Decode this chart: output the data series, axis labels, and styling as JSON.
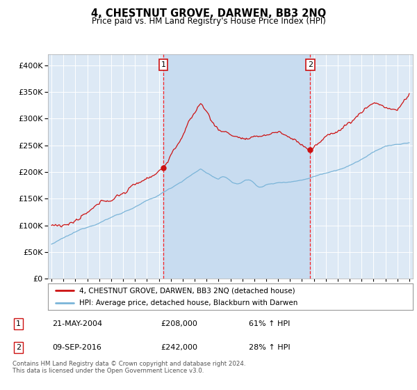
{
  "title": "4, CHESTNUT GROVE, DARWEN, BB3 2NQ",
  "subtitle": "Price paid vs. HM Land Registry's House Price Index (HPI)",
  "bg_color": "#dde9f5",
  "shade_color": "#c8dcf0",
  "red_label": "4, CHESTNUT GROVE, DARWEN, BB3 2NQ (detached house)",
  "blue_label": "HPI: Average price, detached house, Blackburn with Darwen",
  "annotation1_date": "21-MAY-2004",
  "annotation1_price": "£208,000",
  "annotation1_hpi": "61% ↑ HPI",
  "annotation1_year": 2004.38,
  "annotation1_value": 208000,
  "annotation2_date": "09-SEP-2016",
  "annotation2_price": "£242,000",
  "annotation2_hpi": "28% ↑ HPI",
  "annotation2_year": 2016.69,
  "annotation2_value": 242000,
  "footer": "Contains HM Land Registry data © Crown copyright and database right 2024.\nThis data is licensed under the Open Government Licence v3.0.",
  "ylim": [
    0,
    420000
  ],
  "yticks": [
    0,
    50000,
    100000,
    150000,
    200000,
    250000,
    300000,
    350000,
    400000
  ],
  "xlim_start": 1994.7,
  "xlim_end": 2025.3
}
